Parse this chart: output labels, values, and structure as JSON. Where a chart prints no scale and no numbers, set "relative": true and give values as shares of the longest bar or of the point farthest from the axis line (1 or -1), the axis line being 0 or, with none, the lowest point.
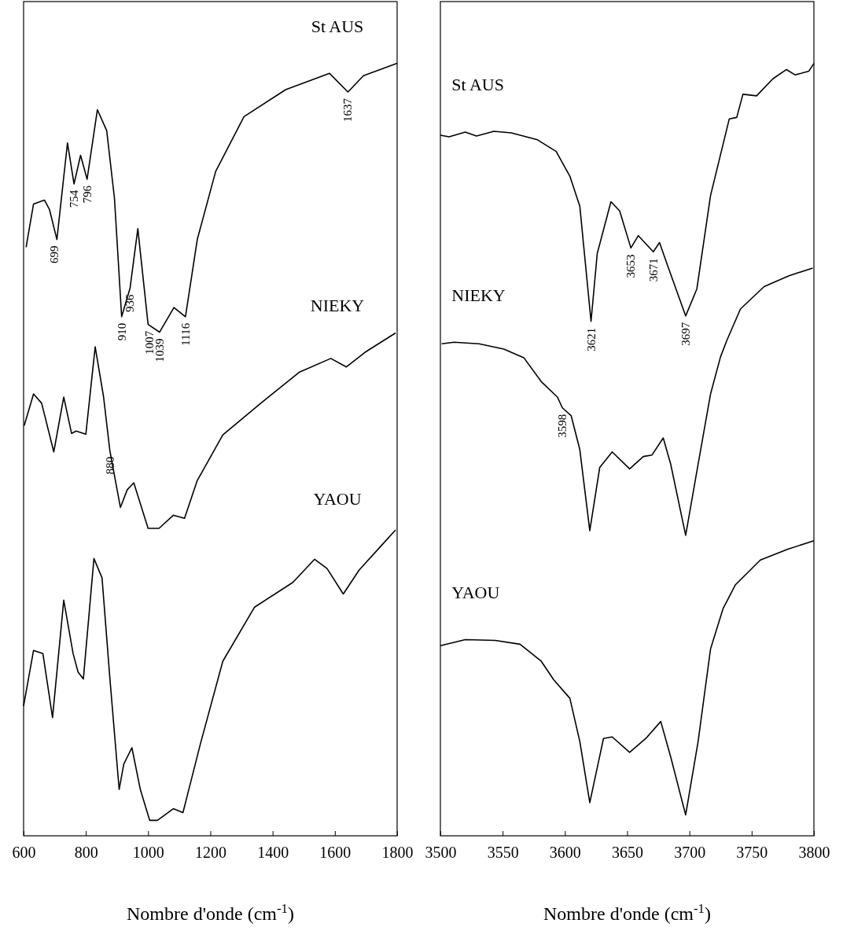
{
  "chart_data": [
    {
      "type": "line",
      "relative": true,
      "tick_labels": "x",
      "xlabel": "Nombre d'onde (cm$^{-1}$)",
      "xlim": [
        600,
        1800
      ],
      "xticks": [
        600,
        800,
        1000,
        1200,
        1400,
        1600,
        1800
      ],
      "series": [
        {
          "name": "St AUS",
          "color": "#000000",
          "x": [
            608,
            632,
            667,
            683,
            707,
            741,
            762,
            783,
            804,
            837,
            867,
            892,
            915,
            942,
            967,
            1000,
            1037,
            1083,
            1120,
            1158,
            1217,
            1308,
            1442,
            1583,
            1642,
            1692,
            1800
          ],
          "values": [
            0.762,
            0.818,
            0.823,
            0.811,
            0.772,
            0.897,
            0.844,
            0.881,
            0.85,
            0.94,
            0.913,
            0.825,
            0.672,
            0.709,
            0.786,
            0.662,
            0.652,
            0.684,
            0.672,
            0.772,
            0.86,
            0.931,
            0.966,
            0.987,
            0.963,
            0.984,
            1.0
          ]
        },
        {
          "name": "NIEKY",
          "color": "#000000",
          "x": [
            602,
            632,
            658,
            697,
            729,
            754,
            769,
            800,
            830,
            857,
            877,
            911,
            933,
            954,
            1000,
            1035,
            1081,
            1117,
            1158,
            1240,
            1362,
            1485,
            1587,
            1637,
            1697,
            1795
          ],
          "values": [
            0.531,
            0.572,
            0.56,
            0.497,
            0.568,
            0.521,
            0.524,
            0.52,
            0.633,
            0.568,
            0.499,
            0.425,
            0.448,
            0.457,
            0.398,
            0.398,
            0.415,
            0.411,
            0.46,
            0.519,
            0.56,
            0.6,
            0.618,
            0.607,
            0.626,
            0.651
          ]
        },
        {
          "name": "YAOU",
          "color": "#000000",
          "x": [
            600,
            632,
            662,
            693,
            729,
            759,
            775,
            792,
            826,
            852,
            877,
            907,
            922,
            948,
            975,
            1005,
            1030,
            1081,
            1112,
            1168,
            1240,
            1342,
            1465,
            1535,
            1575,
            1627,
            1678,
            1750,
            1795
          ],
          "values": [
            0.168,
            0.24,
            0.236,
            0.153,
            0.305,
            0.236,
            0.212,
            0.203,
            0.359,
            0.334,
            0.205,
            0.06,
            0.093,
            0.114,
            0.06,
            0.02,
            0.02,
            0.035,
            0.03,
            0.119,
            0.226,
            0.296,
            0.328,
            0.358,
            0.346,
            0.313,
            0.344,
            0.376,
            0.396
          ]
        }
      ],
      "annotations": [
        {
          "text": "699",
          "x": 699,
          "y": 0.772
        },
        {
          "text": "754",
          "x": 762,
          "y": 0.844
        },
        {
          "text": "796",
          "x": 804,
          "y": 0.85
        },
        {
          "text": "910",
          "x": 915,
          "y": 0.672
        },
        {
          "text": "936",
          "x": 942,
          "y": 0.709
        },
        {
          "text": "1007",
          "x": 1003,
          "y": 0.662
        },
        {
          "text": "1039",
          "x": 1037,
          "y": 0.652
        },
        {
          "text": "1116",
          "x": 1120,
          "y": 0.672
        },
        {
          "text": "1637",
          "x": 1642,
          "y": 0.963
        },
        {
          "text": "880",
          "x": 877,
          "y": 0.499
        }
      ]
    },
    {
      "type": "line",
      "relative": true,
      "tick_labels": "x",
      "xlabel": "Nombre d'onde (cm$^{-1}$)",
      "xlim": [
        3500,
        3800
      ],
      "xticks": [
        3500,
        3550,
        3600,
        3650,
        3700,
        3750,
        3800
      ],
      "series": [
        {
          "name": "St AUS",
          "color": "#000000",
          "x": [
            3500,
            3507,
            3520,
            3529,
            3543,
            3557,
            3578,
            3593,
            3604,
            3612,
            3621,
            3626,
            3637,
            3644,
            3653,
            3659,
            3671,
            3676,
            3683,
            3697,
            3706,
            3717,
            3732,
            3738,
            3743,
            3754,
            3767,
            3778,
            3785,
            3796,
            3800
          ],
          "values": [
            0.907,
            0.905,
            0.911,
            0.906,
            0.912,
            0.91,
            0.901,
            0.886,
            0.854,
            0.815,
            0.666,
            0.754,
            0.821,
            0.809,
            0.761,
            0.777,
            0.756,
            0.768,
            0.736,
            0.673,
            0.708,
            0.829,
            0.928,
            0.93,
            0.96,
            0.958,
            0.98,
            0.992,
            0.985,
            0.99,
            1.0
          ]
        },
        {
          "name": "NIEKY",
          "color": "#000000",
          "x": [
            3501,
            3511,
            3531,
            3551,
            3567,
            3581,
            3594,
            3598,
            3605,
            3612,
            3620,
            3628,
            3638,
            3652,
            3663,
            3670,
            3679,
            3685,
            3697,
            3707,
            3717,
            3725,
            3730,
            3741,
            3760,
            3780,
            3799
          ],
          "values": [
            0.637,
            0.639,
            0.637,
            0.63,
            0.619,
            0.588,
            0.568,
            0.554,
            0.544,
            0.5,
            0.395,
            0.477,
            0.497,
            0.475,
            0.491,
            0.493,
            0.515,
            0.481,
            0.389,
            0.481,
            0.572,
            0.62,
            0.641,
            0.682,
            0.711,
            0.725,
            0.735
          ]
        },
        {
          "name": "YAOU",
          "color": "#000000",
          "x": [
            3500,
            3520,
            3544,
            3564,
            3581,
            3591,
            3604,
            3612,
            3620,
            3631,
            3638,
            3652,
            3665,
            3677,
            3685,
            3697,
            3707,
            3717,
            3727,
            3737,
            3757,
            3779,
            3800
          ],
          "values": [
            0.246,
            0.254,
            0.253,
            0.248,
            0.226,
            0.202,
            0.178,
            0.122,
            0.043,
            0.126,
            0.128,
            0.108,
            0.126,
            0.148,
            0.102,
            0.027,
            0.122,
            0.242,
            0.294,
            0.325,
            0.357,
            0.371,
            0.382
          ]
        }
      ],
      "annotations": [
        {
          "text": "3621",
          "x": 3621,
          "y": 0.666
        },
        {
          "text": "3653",
          "x": 3653,
          "y": 0.761
        },
        {
          "text": "3671",
          "x": 3671,
          "y": 0.756
        },
        {
          "text": "3697",
          "x": 3697,
          "y": 0.673
        },
        {
          "text": "3598",
          "x": 3598,
          "y": 0.554
        }
      ]
    }
  ]
}
